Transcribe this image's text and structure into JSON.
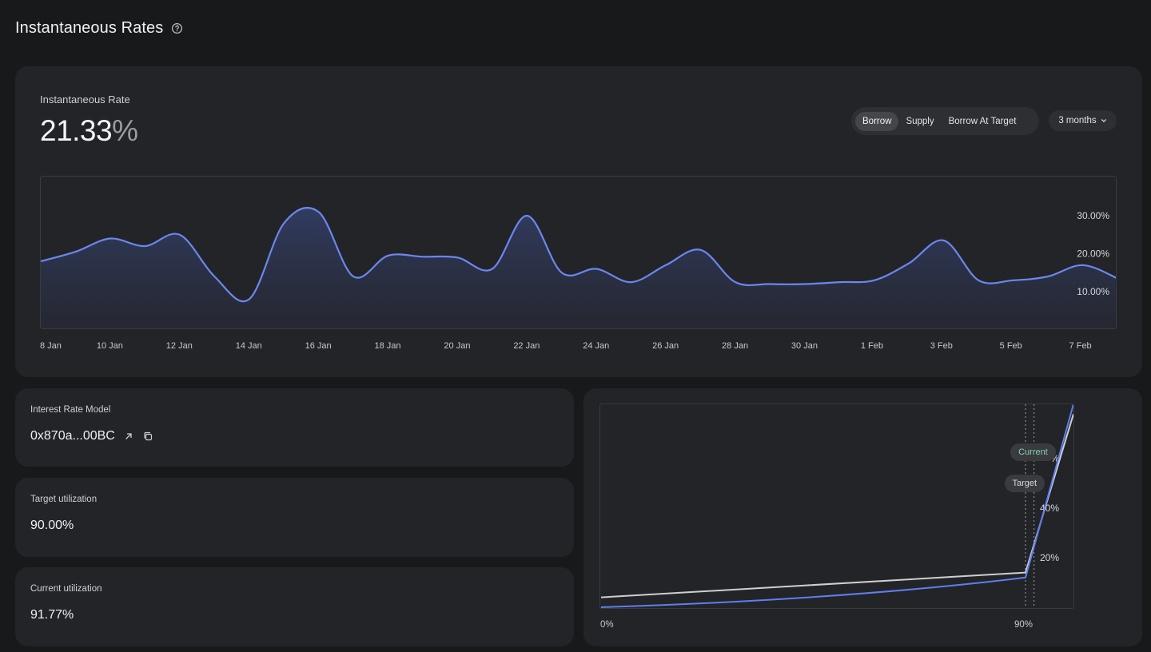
{
  "header": {
    "title": "Instantaneous Rates"
  },
  "rate_card": {
    "label": "Instantaneous Rate",
    "value": "21.33",
    "unit": "%",
    "tabs": [
      {
        "label": "Borrow",
        "active": true
      },
      {
        "label": "Supply",
        "active": false
      },
      {
        "label": "Borrow At Target",
        "active": false
      }
    ],
    "range": "3 months"
  },
  "chart_data": [
    {
      "type": "area",
      "title": "",
      "x": [
        "8 Jan",
        "9 Jan",
        "10 Jan",
        "11 Jan",
        "12 Jan",
        "13 Jan",
        "14 Jan",
        "15 Jan",
        "16 Jan",
        "17 Jan",
        "18 Jan",
        "19 Jan",
        "20 Jan",
        "21 Jan",
        "22 Jan",
        "23 Jan",
        "24 Jan",
        "25 Jan",
        "26 Jan",
        "27 Jan",
        "28 Jan",
        "29 Jan",
        "30 Jan",
        "31 Jan",
        "1 Feb",
        "2 Feb",
        "3 Feb",
        "4 Feb",
        "5 Feb",
        "6 Feb",
        "7 Feb",
        "8 Feb"
      ],
      "series": [
        {
          "values": [
            18.0,
            20.5,
            24.0,
            22.0,
            25.0,
            14.0,
            8.0,
            28.0,
            31.0,
            14.0,
            19.5,
            19.2,
            19.0,
            16.0,
            30.0,
            15.0,
            16.0,
            12.5,
            17.0,
            21.0,
            12.5,
            12.0,
            12.0,
            12.5,
            13.0,
            17.5,
            23.5,
            13.0,
            13.0,
            14.0,
            17.0,
            13.5
          ]
        }
      ],
      "xticks": [
        "8 Jan",
        "10 Jan",
        "12 Jan",
        "14 Jan",
        "16 Jan",
        "18 Jan",
        "20 Jan",
        "22 Jan",
        "24 Jan",
        "26 Jan",
        "28 Jan",
        "30 Jan",
        "1 Feb",
        "3 Feb",
        "5 Feb",
        "7 Feb"
      ],
      "yticks": [
        "10.00%",
        "20.00%",
        "30.00%"
      ],
      "ylim": [
        0,
        40
      ],
      "grid": false,
      "color": "#6b87f0"
    },
    {
      "type": "line",
      "title": "",
      "x": [
        0,
        90,
        100
      ],
      "series": [
        {
          "values": [
            0,
            12,
            82
          ],
          "color": "#5f7ef0"
        },
        {
          "values": [
            4,
            14,
            78
          ],
          "color": "#cfcfd2"
        }
      ],
      "xticks": [
        "0%",
        "90%"
      ],
      "yticks": [
        "20%",
        "40%",
        "%"
      ],
      "ylim": [
        0,
        80
      ],
      "markers": [
        {
          "label": "Current",
          "x": 91.77,
          "color": "#7fd2b0"
        },
        {
          "label": "Target",
          "x": 90.0,
          "color": "#d7d8db"
        }
      ]
    }
  ],
  "irm": {
    "label": "Interest Rate Model",
    "address": "0x870a...00BC"
  },
  "target": {
    "label": "Target utilization",
    "value": "90.00%"
  },
  "current": {
    "label": "Current utilization",
    "value": "91.77%"
  },
  "colors": {
    "background": "#18191b",
    "card": "#232427",
    "accent": "#6b87f0",
    "current": "#7fd2b0"
  },
  "icons": [
    "help-circle-icon",
    "chevron-down-icon",
    "external-link-icon",
    "copy-icon"
  ]
}
